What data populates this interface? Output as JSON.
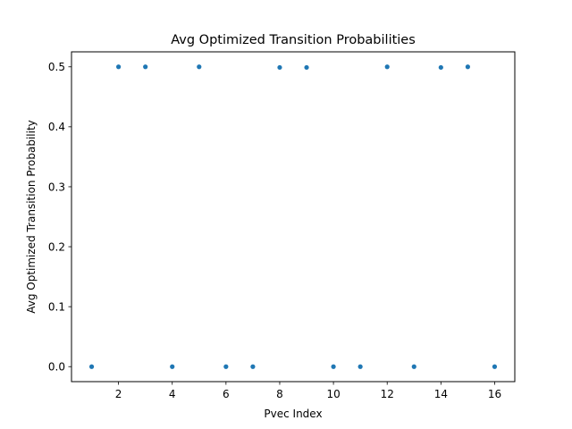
{
  "chart_data": {
    "type": "scatter",
    "title": "Avg Optimized Transition Probabilities",
    "xlabel": "Pvec Index",
    "ylabel": "Avg Optimized Transition Probability",
    "x": [
      1,
      2,
      3,
      4,
      5,
      6,
      7,
      8,
      9,
      10,
      11,
      12,
      13,
      14,
      15,
      16
    ],
    "y": [
      0.0,
      0.5,
      0.5,
      0.0,
      0.5,
      0.0,
      0.0,
      0.499,
      0.499,
      0.0,
      0.0,
      0.5,
      0.0,
      0.499,
      0.5,
      0.0
    ],
    "xlim": [
      0.25,
      16.75
    ],
    "ylim": [
      -0.025,
      0.525
    ],
    "xticks": [
      2,
      4,
      6,
      8,
      10,
      12,
      14,
      16
    ],
    "xtick_labels": [
      "2",
      "4",
      "6",
      "8",
      "10",
      "12",
      "14",
      "16"
    ],
    "yticks": [
      0.0,
      0.1,
      0.2,
      0.3,
      0.4,
      0.5
    ],
    "ytick_labels": [
      "0.0",
      "0.1",
      "0.2",
      "0.3",
      "0.4",
      "0.5"
    ],
    "grid": false,
    "marker_color": "#1f77b4"
  }
}
